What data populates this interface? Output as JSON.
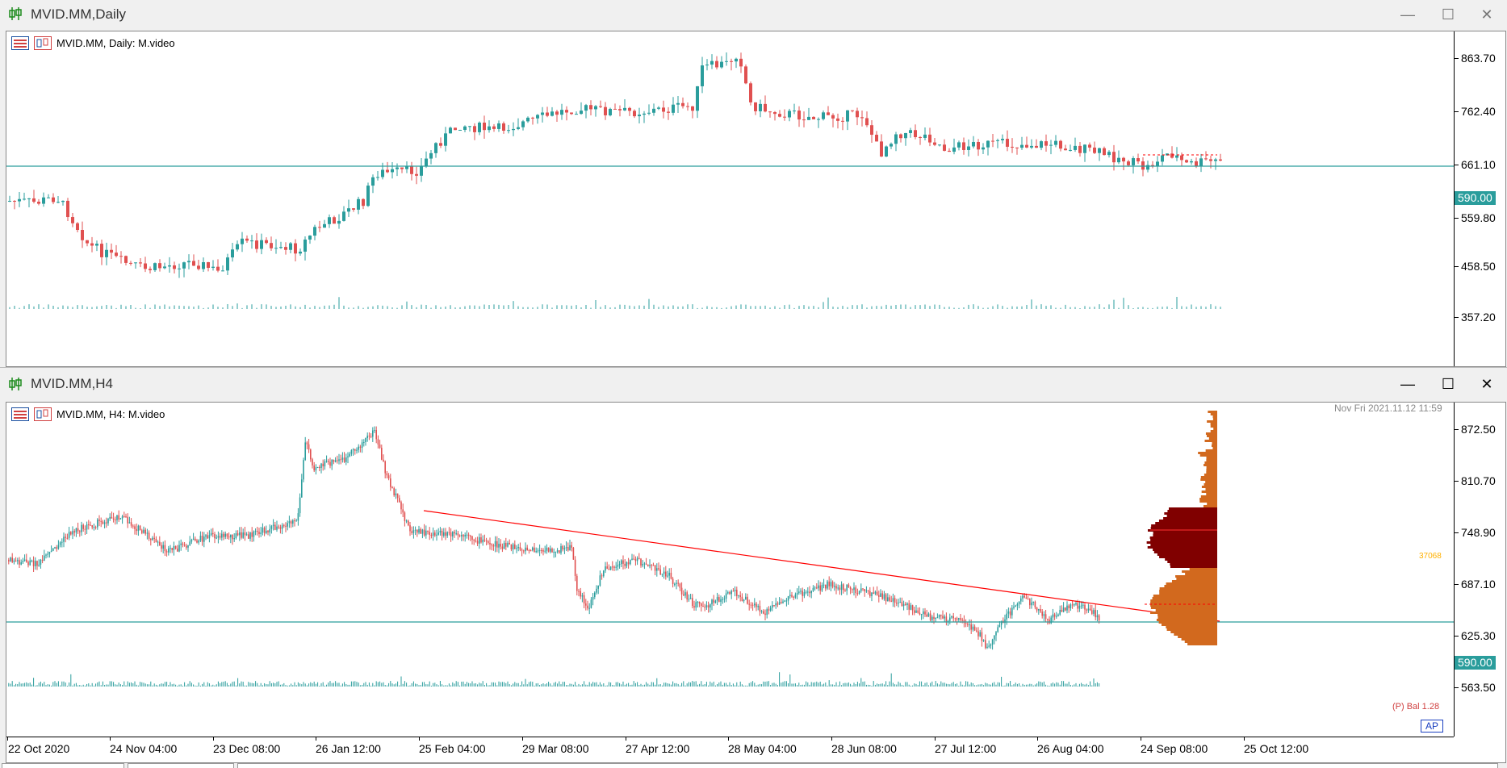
{
  "colors": {
    "bull": "#2a9d9c",
    "bear": "#e05050",
    "hline": "#2a9d9c",
    "trend": "#ff0000",
    "vp_light": "#d2691e",
    "vp_dark": "#800000"
  },
  "daily": {
    "window_title": "MVID.MM,Daily",
    "legend": "MVID.MM, Daily:  M.video",
    "price_labels": [
      "863.70",
      "762.40",
      "661.10",
      "559.80",
      "458.50",
      "357.20"
    ],
    "current_price": "590.00",
    "window_icon": "candlestick-chart-icon",
    "controls": [
      "minimize-icon",
      "maximize-icon",
      "close-icon"
    ]
  },
  "h4": {
    "window_title": "MVID.MM,H4",
    "legend": "MVID.MM, H4:  M.video",
    "price_labels": [
      "872.50",
      "810.70",
      "748.90",
      "687.10",
      "625.30",
      "563.50"
    ],
    "current_price": "590.00",
    "poc_label": "37068",
    "balance_label": "(P) Bal 1.28",
    "ap_label": "AP",
    "datetime_label": "Nov Fri 2021.11.12 11:59",
    "time_labels": [
      "22 Oct 2020",
      "24 Nov 04:00",
      "23 Dec 08:00",
      "26 Jan 12:00",
      "25 Feb 04:00",
      "29 Mar 08:00",
      "27 Apr 12:00",
      "28 May 04:00",
      "28 Jun 08:00",
      "27 Jul 12:00",
      "26 Aug 04:00",
      "24 Sep 08:00",
      "25 Oct 12:00"
    ],
    "window_icon": "candlestick-chart-icon",
    "controls": [
      "minimize-icon",
      "maximize-icon",
      "close-icon"
    ]
  }
}
